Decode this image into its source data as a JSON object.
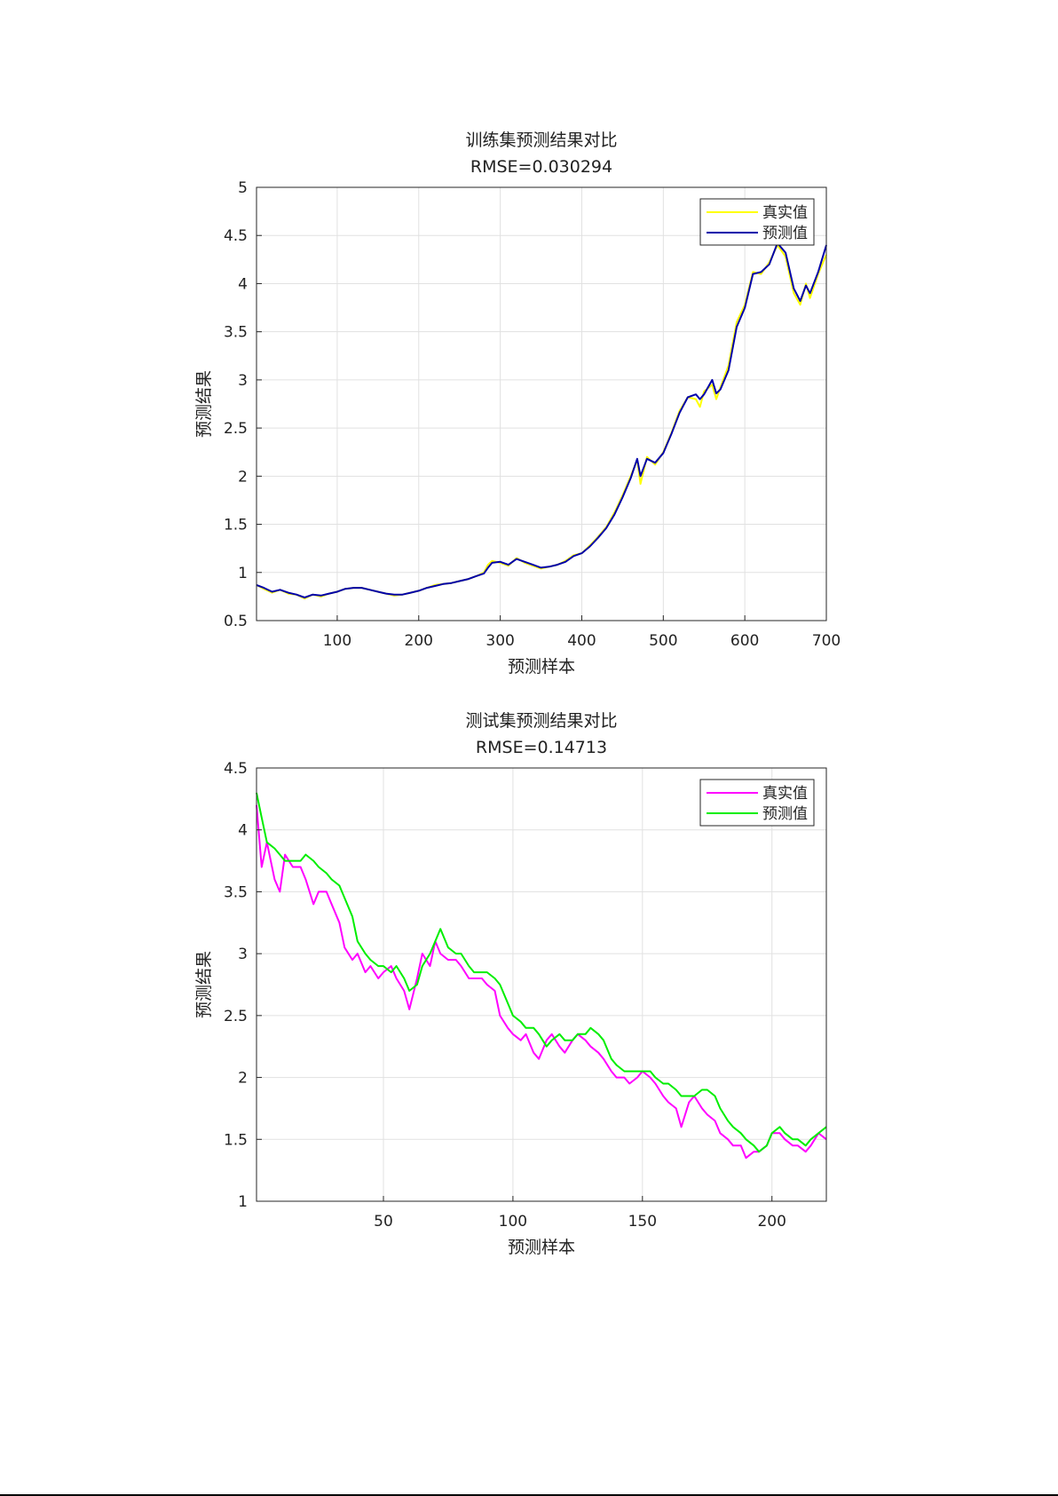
{
  "chart_data": [
    {
      "type": "line",
      "title": "训练集预测结果对比",
      "subtitle": "RMSE=0.030294",
      "xlabel": "预测样本",
      "ylabel": "预测结果",
      "xlim": [
        1,
        700
      ],
      "ylim": [
        0.5,
        5
      ],
      "xticks": [
        100,
        200,
        300,
        400,
        500,
        600,
        700
      ],
      "xtick_labels": [
        "100",
        "200",
        "300",
        "400",
        "500",
        "600",
        "700"
      ],
      "yticks": [
        0.5,
        1,
        1.5,
        2,
        2.5,
        3,
        3.5,
        4,
        4.5,
        5
      ],
      "ytick_labels": [
        "0.5",
        "1",
        "1.5",
        "2",
        "2.5",
        "3",
        "3.5",
        "4",
        "4.5",
        "5"
      ],
      "grid": true,
      "legend_position": "top-right",
      "series": [
        {
          "name": "真实值",
          "color": "#FFFF00",
          "x": [
            1,
            10,
            20,
            30,
            40,
            50,
            60,
            70,
            80,
            90,
            100,
            110,
            120,
            130,
            140,
            150,
            160,
            170,
            180,
            190,
            200,
            210,
            220,
            230,
            240,
            250,
            260,
            270,
            280,
            285,
            290,
            300,
            310,
            320,
            330,
            340,
            350,
            360,
            370,
            380,
            390,
            400,
            410,
            420,
            430,
            440,
            450,
            460,
            468,
            472,
            480,
            490,
            500,
            510,
            520,
            530,
            540,
            545,
            550,
            560,
            565,
            570,
            580,
            590,
            600,
            610,
            620,
            630,
            640,
            650,
            660,
            668,
            675,
            680,
            690,
            700
          ],
          "values": [
            0.87,
            0.83,
            0.79,
            0.82,
            0.78,
            0.77,
            0.73,
            0.77,
            0.75,
            0.78,
            0.8,
            0.83,
            0.84,
            0.84,
            0.82,
            0.8,
            0.78,
            0.76,
            0.77,
            0.79,
            0.81,
            0.84,
            0.87,
            0.88,
            0.89,
            0.91,
            0.93,
            0.96,
            1.0,
            1.08,
            1.12,
            1.1,
            1.07,
            1.15,
            1.1,
            1.07,
            1.04,
            1.06,
            1.08,
            1.12,
            1.18,
            1.2,
            1.28,
            1.37,
            1.47,
            1.62,
            1.8,
            2.0,
            2.17,
            1.92,
            2.2,
            2.12,
            2.25,
            2.45,
            2.68,
            2.82,
            2.8,
            2.72,
            2.88,
            2.95,
            2.8,
            2.92,
            3.15,
            3.6,
            3.78,
            4.12,
            4.1,
            4.22,
            4.4,
            4.28,
            3.9,
            3.78,
            4.0,
            3.85,
            4.1,
            4.3
          ]
        },
        {
          "name": "预测值",
          "color": "#0000AA",
          "x": [
            1,
            10,
            20,
            30,
            40,
            50,
            60,
            70,
            80,
            90,
            100,
            110,
            120,
            130,
            140,
            150,
            160,
            170,
            180,
            190,
            200,
            210,
            220,
            230,
            240,
            250,
            260,
            270,
            280,
            285,
            290,
            300,
            310,
            320,
            330,
            340,
            350,
            360,
            370,
            380,
            390,
            400,
            410,
            420,
            430,
            440,
            450,
            460,
            468,
            472,
            480,
            490,
            500,
            510,
            520,
            530,
            540,
            545,
            550,
            560,
            565,
            570,
            580,
            590,
            600,
            610,
            620,
            630,
            640,
            650,
            660,
            668,
            675,
            680,
            690,
            700
          ],
          "values": [
            0.87,
            0.84,
            0.8,
            0.82,
            0.79,
            0.77,
            0.74,
            0.77,
            0.76,
            0.78,
            0.8,
            0.83,
            0.84,
            0.84,
            0.82,
            0.8,
            0.78,
            0.77,
            0.77,
            0.79,
            0.81,
            0.84,
            0.86,
            0.88,
            0.89,
            0.91,
            0.93,
            0.96,
            0.99,
            1.05,
            1.1,
            1.11,
            1.08,
            1.14,
            1.11,
            1.08,
            1.05,
            1.06,
            1.08,
            1.11,
            1.17,
            1.2,
            1.27,
            1.36,
            1.46,
            1.6,
            1.78,
            1.98,
            2.18,
            2.0,
            2.18,
            2.14,
            2.24,
            2.44,
            2.66,
            2.82,
            2.85,
            2.8,
            2.85,
            3.0,
            2.86,
            2.9,
            3.1,
            3.55,
            3.75,
            4.1,
            4.12,
            4.2,
            4.42,
            4.32,
            3.95,
            3.82,
            3.98,
            3.9,
            4.12,
            4.4
          ]
        }
      ]
    },
    {
      "type": "line",
      "title": "测试集预测结果对比",
      "subtitle": "RMSE=0.14713",
      "xlabel": "预测样本",
      "ylabel": "预测结果",
      "xlim": [
        1,
        221
      ],
      "ylim": [
        1,
        4.5
      ],
      "xticks": [
        50,
        100,
        150,
        200
      ],
      "xtick_labels": [
        "50",
        "100",
        "150",
        "200"
      ],
      "yticks": [
        1,
        1.5,
        2,
        2.5,
        3,
        3.5,
        4,
        4.5
      ],
      "ytick_labels": [
        "1",
        "1.5",
        "2",
        "2.5",
        "3",
        "3.5",
        "4",
        "4.5"
      ],
      "grid": true,
      "legend_position": "top-right",
      "series": [
        {
          "name": "真实值",
          "color": "#FF00FF",
          "x": [
            1,
            3,
            5,
            8,
            10,
            12,
            15,
            18,
            20,
            23,
            25,
            28,
            30,
            33,
            35,
            38,
            40,
            43,
            45,
            48,
            50,
            53,
            55,
            58,
            60,
            63,
            65,
            68,
            70,
            72,
            75,
            78,
            80,
            83,
            85,
            88,
            90,
            93,
            95,
            98,
            100,
            103,
            105,
            108,
            110,
            113,
            115,
            118,
            120,
            123,
            125,
            128,
            130,
            133,
            135,
            138,
            140,
            143,
            145,
            148,
            150,
            153,
            155,
            158,
            160,
            163,
            165,
            168,
            170,
            173,
            175,
            178,
            180,
            183,
            185,
            188,
            190,
            193,
            195,
            198,
            200,
            203,
            205,
            208,
            210,
            213,
            215,
            218,
            221
          ],
          "values": [
            4.2,
            3.7,
            3.9,
            3.6,
            3.5,
            3.8,
            3.7,
            3.7,
            3.6,
            3.4,
            3.5,
            3.5,
            3.4,
            3.25,
            3.05,
            2.95,
            3.0,
            2.85,
            2.9,
            2.8,
            2.85,
            2.9,
            2.8,
            2.7,
            2.55,
            2.8,
            3.0,
            2.9,
            3.1,
            3.0,
            2.95,
            2.95,
            2.9,
            2.8,
            2.8,
            2.8,
            2.75,
            2.7,
            2.5,
            2.4,
            2.35,
            2.3,
            2.35,
            2.2,
            2.15,
            2.3,
            2.35,
            2.25,
            2.2,
            2.3,
            2.35,
            2.3,
            2.25,
            2.2,
            2.15,
            2.05,
            2.0,
            2.0,
            1.95,
            2.0,
            2.05,
            2.0,
            1.95,
            1.85,
            1.8,
            1.75,
            1.6,
            1.8,
            1.85,
            1.75,
            1.7,
            1.65,
            1.55,
            1.5,
            1.45,
            1.45,
            1.35,
            1.4,
            1.4,
            1.45,
            1.55,
            1.55,
            1.5,
            1.45,
            1.45,
            1.4,
            1.45,
            1.55,
            1.5
          ]
        },
        {
          "name": "预测值",
          "color": "#00EE00",
          "x": [
            1,
            3,
            5,
            8,
            10,
            12,
            15,
            18,
            20,
            23,
            25,
            28,
            30,
            33,
            35,
            38,
            40,
            43,
            45,
            48,
            50,
            53,
            55,
            58,
            60,
            63,
            65,
            68,
            70,
            72,
            75,
            78,
            80,
            83,
            85,
            88,
            90,
            93,
            95,
            98,
            100,
            103,
            105,
            108,
            110,
            113,
            115,
            118,
            120,
            123,
            125,
            128,
            130,
            133,
            135,
            138,
            140,
            143,
            145,
            148,
            150,
            153,
            155,
            158,
            160,
            163,
            165,
            168,
            170,
            173,
            175,
            178,
            180,
            183,
            185,
            188,
            190,
            193,
            195,
            198,
            200,
            203,
            205,
            208,
            210,
            213,
            215,
            218,
            221
          ],
          "values": [
            4.3,
            4.1,
            3.9,
            3.85,
            3.8,
            3.75,
            3.75,
            3.75,
            3.8,
            3.75,
            3.7,
            3.65,
            3.6,
            3.55,
            3.45,
            3.3,
            3.1,
            3.0,
            2.95,
            2.9,
            2.9,
            2.85,
            2.9,
            2.8,
            2.7,
            2.75,
            2.9,
            3.0,
            3.1,
            3.2,
            3.05,
            3.0,
            3.0,
            2.9,
            2.85,
            2.85,
            2.85,
            2.8,
            2.75,
            2.6,
            2.5,
            2.45,
            2.4,
            2.4,
            2.35,
            2.25,
            2.3,
            2.35,
            2.3,
            2.3,
            2.35,
            2.35,
            2.4,
            2.35,
            2.3,
            2.15,
            2.1,
            2.05,
            2.05,
            2.05,
            2.05,
            2.05,
            2.0,
            1.95,
            1.95,
            1.9,
            1.85,
            1.85,
            1.85,
            1.9,
            1.9,
            1.85,
            1.75,
            1.65,
            1.6,
            1.55,
            1.5,
            1.45,
            1.4,
            1.45,
            1.55,
            1.6,
            1.55,
            1.5,
            1.5,
            1.45,
            1.5,
            1.55,
            1.6
          ]
        }
      ]
    }
  ]
}
